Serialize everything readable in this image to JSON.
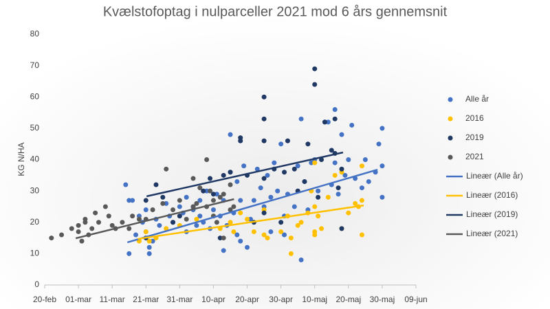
{
  "chart_data": {
    "type": "scatter",
    "title": "Kvælstofoptag i nulparceller 2021 mod 6 års gennemsnit",
    "y_label": "KG N/HA",
    "xlim": [
      0,
      110
    ],
    "xticks": [
      {
        "value": 0,
        "label": "20-feb"
      },
      {
        "value": 10,
        "label": "01-mar"
      },
      {
        "value": 20,
        "label": "11-mar"
      },
      {
        "value": 30,
        "label": "21-mar"
      },
      {
        "value": 40,
        "label": "31-mar"
      },
      {
        "value": 50,
        "label": "10-apr"
      },
      {
        "value": 60,
        "label": "20-apr"
      },
      {
        "value": 70,
        "label": "30-apr"
      },
      {
        "value": 80,
        "label": "10-maj"
      },
      {
        "value": 90,
        "label": "20-maj"
      },
      {
        "value": 100,
        "label": "30-maj"
      },
      {
        "value": 110,
        "label": "09-jun"
      }
    ],
    "ylim": [
      0,
      80
    ],
    "yticks": [
      0,
      10,
      20,
      30,
      40,
      50,
      60,
      70,
      80
    ],
    "grid": false,
    "legend": "right",
    "series": [
      {
        "name": "Alle år",
        "type": "scatter",
        "color": "#4472c4",
        "x": [
          25,
          25,
          24,
          26,
          27,
          28,
          29,
          30,
          30,
          31,
          31,
          32,
          33,
          34,
          36,
          37,
          38,
          40,
          41,
          42,
          42,
          44,
          45,
          46,
          46,
          47,
          48,
          49,
          50,
          51,
          52,
          53,
          53,
          54,
          55,
          55,
          56,
          57,
          57,
          58,
          58,
          59,
          60,
          61,
          62,
          63,
          64,
          65,
          66,
          67,
          67,
          68,
          69,
          70,
          71,
          71,
          72,
          74,
          75,
          76,
          77,
          78,
          79,
          80,
          81,
          83,
          84,
          85,
          86,
          86,
          87,
          88,
          89,
          90,
          91,
          92,
          94,
          95,
          96,
          98,
          99,
          100,
          100,
          100,
          76
        ],
        "values": [
          10,
          27,
          32,
          27,
          16,
          22,
          20,
          17,
          24,
          12,
          10,
          14,
          21,
          19,
          26,
          22,
          20,
          25,
          23,
          28,
          17,
          24,
          19,
          22,
          27,
          20,
          30,
          18,
          24,
          29,
          22,
          11,
          27,
          19,
          36,
          48,
          23,
          16,
          33,
          27,
          14,
          38,
          12,
          21,
          27,
          37,
          31,
          25,
          35,
          28,
          17,
          39,
          30,
          45,
          22,
          16,
          29,
          25,
          38,
          53,
          33,
          24,
          39,
          40,
          30,
          52,
          52,
          32,
          56,
          39,
          29,
          48,
          35,
          40,
          51,
          34,
          31,
          40,
          33,
          36,
          45,
          50,
          38,
          28,
          8
        ]
      },
      {
        "name": "2016",
        "type": "scatter",
        "color": "#ffc000",
        "x": [
          28,
          28,
          30,
          31,
          33,
          36,
          40,
          45,
          50,
          52,
          55,
          56,
          58,
          60,
          62,
          65,
          65,
          66,
          70,
          72,
          73,
          73,
          75,
          76,
          78,
          80,
          80,
          80,
          80,
          82,
          84,
          86,
          88,
          88,
          90,
          92,
          93,
          94,
          94,
          94,
          79,
          81
        ],
        "values": [
          21,
          14,
          17,
          14,
          15,
          18,
          19,
          21,
          22,
          18,
          20,
          17,
          23,
          21,
          17,
          24,
          16,
          15,
          17,
          22,
          10,
          15,
          19,
          20,
          23,
          39,
          25,
          17,
          16,
          18,
          28,
          35,
          36,
          18,
          23,
          26,
          25,
          38,
          16,
          27,
          30,
          22
        ]
      },
      {
        "name": "2019",
        "type": "scatter",
        "color": "#1f3864",
        "x": [
          30,
          30,
          33,
          35,
          38,
          40,
          44,
          47,
          49,
          50,
          52,
          53,
          55,
          58,
          58,
          60,
          62,
          65,
          65,
          65,
          65,
          65,
          68,
          70,
          71,
          72,
          74,
          75,
          77,
          78,
          80,
          80,
          81,
          82,
          83,
          85,
          86,
          87,
          88,
          88,
          86
        ],
        "values": [
          27,
          15,
          32,
          28,
          20,
          22,
          25,
          30,
          34,
          29,
          15,
          35,
          36,
          47,
          46,
          35,
          20,
          60,
          53,
          46,
          34,
          23,
          37,
          20,
          36,
          46,
          37,
          30,
          33,
          45,
          69,
          64,
          28,
          40,
          52,
          43,
          42,
          31,
          37,
          18,
          53
        ]
      },
      {
        "name": "2021",
        "type": "scatter",
        "color": "#595959",
        "x": [
          2,
          5,
          8,
          10,
          10,
          11,
          12,
          12,
          13,
          14,
          15,
          16,
          18,
          19,
          20,
          21,
          23,
          25,
          26,
          28,
          30,
          32,
          35,
          36,
          38,
          40,
          42,
          44,
          45,
          46,
          48,
          49,
          50,
          50,
          51,
          52,
          53,
          53,
          55,
          55,
          56,
          44,
          48
        ],
        "values": [
          15,
          16,
          18,
          17,
          19,
          14,
          20,
          21,
          16,
          18,
          23,
          20,
          25,
          22,
          19,
          18,
          20,
          18,
          22,
          21,
          21,
          24,
          26,
          37,
          24,
          27,
          21,
          25,
          26,
          31,
          25,
          30,
          27,
          22,
          20,
          28,
          29,
          15,
          32,
          24,
          25,
          34,
          40
        ]
      },
      {
        "name": "Lineær (Alle år)",
        "type": "line",
        "color": "#4472c4",
        "x": [
          24.5,
          98.6
        ],
        "values": [
          13.6,
          36.8
        ]
      },
      {
        "name": "Lineær (2016)",
        "type": "line",
        "color": "#ffc000",
        "x": [
          27.6,
          94.5
        ],
        "values": [
          14.7,
          25.4
        ]
      },
      {
        "name": "Lineær (2019)",
        "type": "line",
        "color": "#203864",
        "x": [
          30.2,
          88.4
        ],
        "values": [
          28.3,
          42.3
        ]
      },
      {
        "name": "Lineær (2021)",
        "type": "line",
        "color": "#595959",
        "x": [
          9.2,
          56.1
        ],
        "values": [
          14.9,
          27.4
        ]
      }
    ]
  }
}
